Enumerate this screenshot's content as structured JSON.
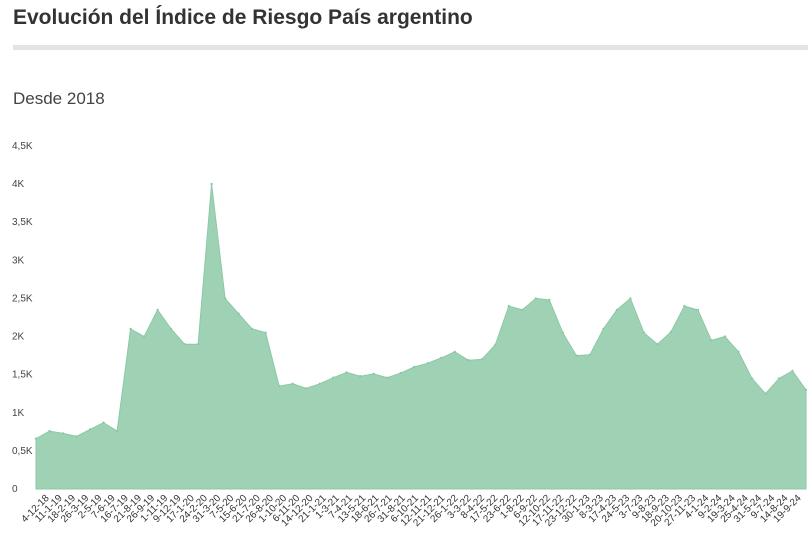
{
  "header": {
    "title": "Evolución del Índice de Riesgo País argentino",
    "subtitle": "Desde 2018"
  },
  "colors": {
    "area_fill": "#9fd2b5",
    "area_line": "#8cc8a6",
    "title_rule": "#e4e4e4"
  },
  "chart_data": {
    "type": "area",
    "title": "Evolución del Índice de Riesgo País argentino",
    "subtitle": "Desde 2018",
    "xlabel": "",
    "ylabel": "",
    "ylim": [
      0,
      4500
    ],
    "grid": false,
    "y_ticks": [
      "0",
      "0,5K",
      "1K",
      "1,5K",
      "2K",
      "2,5K",
      "3K",
      "3,5K",
      "4K",
      "4,5K"
    ],
    "x_ticks": [
      "4-12-18",
      "11-1-19",
      "18-2-19",
      "26-3-19",
      "2-5-19",
      "7-6-19",
      "16-7-19",
      "21-8-19",
      "26-9-19",
      "1-11-19",
      "9-12-19",
      "17-1-20",
      "24-2-20",
      "31-3-20",
      "7-5-20",
      "15-6-20",
      "21-7-20",
      "26-8-20",
      "1-10-20",
      "6-11-20",
      "14-12-20",
      "21-1-21",
      "1-3-21",
      "7-4-21",
      "13-5-21",
      "18-6-21",
      "26-7-21",
      "31-8-21",
      "6-10-21",
      "12-11-21",
      "21-12-21",
      "26-1-22",
      "3-3-22",
      "8-4-22",
      "17-5-22",
      "23-6-22",
      "1-8-22",
      "6-9-22",
      "12-10-22",
      "17-11-22",
      "23-12-22",
      "30-1-23",
      "8-3-23",
      "17-4-23",
      "24-5-23",
      "3-7-23",
      "9-8-23",
      "18-9-23",
      "20-10-23",
      "27-11-23",
      "4-1-24",
      "9-2-24",
      "19-3-24",
      "25-4-24",
      "31-5-24",
      "9-7-24",
      "14-8-24",
      "19-9-24"
    ],
    "series": [
      {
        "x": [
          "4-12-18",
          "11-1-19",
          "18-2-19",
          "26-3-19",
          "2-5-19",
          "7-6-19",
          "16-7-19",
          "21-8-19",
          "26-9-19",
          "1-11-19",
          "9-12-19",
          "17-1-20",
          "24-2-20",
          "31-3-20",
          "7-5-20",
          "15-6-20",
          "21-7-20",
          "26-8-20",
          "1-10-20",
          "6-11-20",
          "14-12-20",
          "21-1-21",
          "1-3-21",
          "7-4-21",
          "13-5-21",
          "18-6-21",
          "26-7-21",
          "31-8-21",
          "6-10-21",
          "12-11-21",
          "21-12-21",
          "26-1-22",
          "3-3-22",
          "8-4-22",
          "17-5-22",
          "23-6-22",
          "1-8-22",
          "6-9-22",
          "12-10-22",
          "17-11-22",
          "23-12-22",
          "30-1-23",
          "8-3-23",
          "17-4-23",
          "24-5-23",
          "3-7-23",
          "9-8-23",
          "18-9-23",
          "20-10-23",
          "27-11-23",
          "4-1-24",
          "9-2-24",
          "19-3-24",
          "25-4-24",
          "31-5-24",
          "9-7-24",
          "14-8-24",
          "19-9-24"
        ],
        "values": [
          660,
          760,
          730,
          690,
          780,
          870,
          760,
          2100,
          2000,
          2350,
          2100,
          1900,
          1900,
          4000,
          2500,
          2300,
          2100,
          2050,
          1350,
          1380,
          1320,
          1380,
          1460,
          1530,
          1480,
          1510,
          1460,
          1520,
          1600,
          1650,
          1720,
          1800,
          1690,
          1700,
          1890,
          2400,
          2350,
          2500,
          2480,
          2050,
          1750,
          1760,
          2100,
          2350,
          2500,
          2050,
          1900,
          2060,
          2400,
          2350,
          1950,
          2000,
          1800,
          1450,
          1250,
          1450,
          1550,
          1300
        ]
      }
    ]
  }
}
